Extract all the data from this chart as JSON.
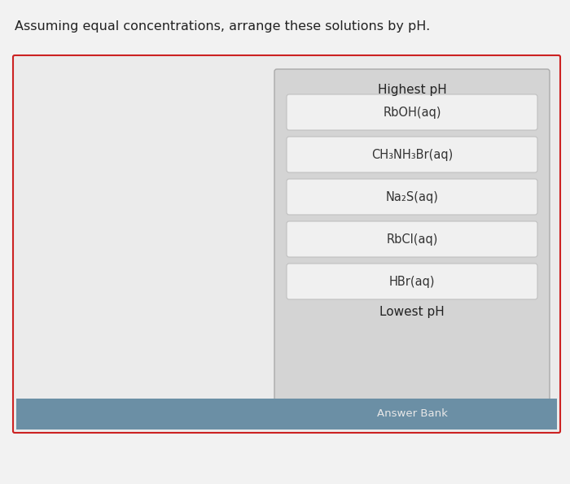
{
  "title": "Assuming equal concentrations, arrange these solutions by pH.",
  "title_fontsize": 11.5,
  "title_color": "#222222",
  "bg_color": "#f2f2f2",
  "outer_box_edge_color": "#cc2222",
  "outer_box_bg": "#ebebeb",
  "right_panel_bg": "#d4d4d4",
  "right_panel_border": "#aaaaaa",
  "highest_label": "Highest pH",
  "lowest_label": "Lowest pH",
  "answer_bank_label": "Answer Bank",
  "answer_bank_bg": "#6b8fa5",
  "answer_bank_text_color": "#e8e8e8",
  "bottom_bar_bg": "#6b8fa5",
  "compounds": [
    "RbOH(aq)",
    "CH₃NH₃Br(aq)",
    "Na₂S(aq)",
    "RbCl(aq)",
    "HBr(aq)"
  ],
  "compound_box_bg": "#f0f0f0",
  "compound_box_border": "#c0c0c0",
  "compound_text_color": "#333333",
  "compound_fontsize": 10.5,
  "label_fontsize": 11,
  "answer_bank_fontsize": 9.5
}
